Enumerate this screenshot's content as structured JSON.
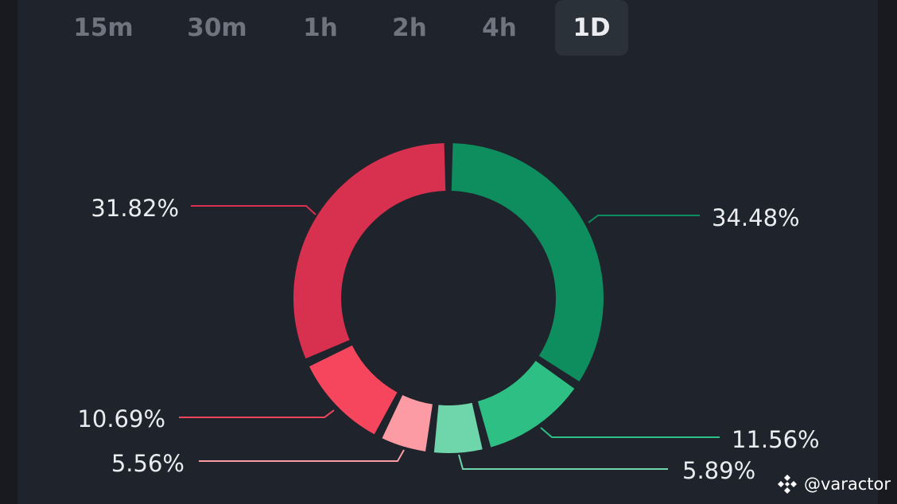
{
  "tabs": [
    {
      "label": "15m",
      "active": false
    },
    {
      "label": "30m",
      "active": false
    },
    {
      "label": "1h",
      "active": false
    },
    {
      "label": "2h",
      "active": false
    },
    {
      "label": "4h",
      "active": false
    },
    {
      "label": "1D",
      "active": true
    }
  ],
  "chart_data": {
    "type": "pie",
    "style": "donut",
    "values": [
      34.48,
      11.56,
      5.89,
      5.56,
      10.69,
      31.82
    ],
    "labels": [
      "34.48%",
      "11.56%",
      "5.89%",
      "5.56%",
      "10.69%",
      "31.82%"
    ],
    "colors": [
      "#0e8e5e",
      "#2dbf83",
      "#6fd6ab",
      "#fd9ba4",
      "#f6465d",
      "#d8304f"
    ]
  },
  "watermark": {
    "text": "@varactor"
  },
  "colors": {
    "background": "#1f232b",
    "tab_active_bg": "#2b3139",
    "tab_text": "#6e757f"
  }
}
